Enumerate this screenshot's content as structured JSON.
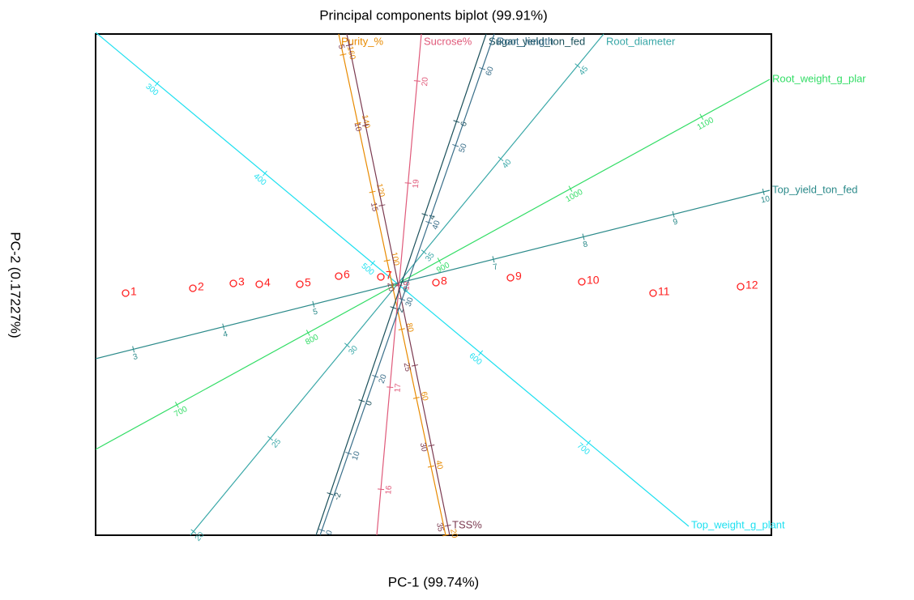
{
  "chart_data": {
    "type": "biplot",
    "title": "Principal components biplot (99.91%)",
    "xlabel": "PC-1  (99.74%)",
    "ylabel": "PC-2  (0.17227%)",
    "xlim": [
      -372,
      462
    ],
    "ylim": [
      -311,
      308
    ],
    "point_color": "#ff2020",
    "points": [
      {
        "label": "1",
        "x": -335,
        "y": -12
      },
      {
        "label": "2",
        "x": -252,
        "y": -6
      },
      {
        "label": "3",
        "x": -202,
        "y": 0
      },
      {
        "label": "4",
        "x": -170,
        "y": -1
      },
      {
        "label": "5",
        "x": -120,
        "y": -1
      },
      {
        "label": "6",
        "x": -72,
        "y": 9
      },
      {
        "label": "7",
        "x": -20,
        "y": 8
      },
      {
        "label": "8",
        "x": 48,
        "y": 1
      },
      {
        "label": "9",
        "x": 140,
        "y": 7
      },
      {
        "label": "10",
        "x": 228,
        "y": 2
      },
      {
        "label": "11",
        "x": 316,
        "y": -12
      },
      {
        "label": "12",
        "x": 424,
        "y": -4
      }
    ],
    "variables": [
      {
        "name": "Top_weight_g_plant",
        "color": "#1ee0f0",
        "start": [
          -372,
          310
        ],
        "end": [
          360,
          -300
        ],
        "lim": [
          243,
          793
        ],
        "ticks": [
          300,
          400,
          500,
          600,
          700
        ]
      },
      {
        "name": "Root_weight_g_plar",
        "color": "#33dd66",
        "start": [
          -372,
          -205
        ],
        "end": [
          460,
          252
        ],
        "lim": [
          638,
          1152
        ],
        "ticks": [
          700,
          800,
          900,
          1000,
          1100
        ]
      },
      {
        "name": "Top_yield_ton_fed",
        "color": "#2b8a8a",
        "start": [
          -372,
          -93
        ],
        "end": [
          460,
          115
        ],
        "lim": [
          2.58,
          10.07
        ],
        "ticks": [
          3,
          4,
          5,
          6,
          7,
          8,
          9,
          10
        ]
      },
      {
        "name": "Root_diameter",
        "color": "#3aa8a8",
        "start": [
          -255,
          -311
        ],
        "end": [
          255,
          308
        ],
        "lim": [
          19.8,
          46.7
        ],
        "ticks": [
          20,
          25,
          30,
          35,
          40,
          45
        ]
      },
      {
        "name": "Purity_%",
        "color": "#e88a00",
        "start": [
          60,
          -311
        ],
        "end": [
          -72,
          308
        ],
        "lim": [
          20,
          166
        ],
        "ticks": [
          20,
          40,
          60,
          80,
          100,
          120,
          140,
          160
        ]
      },
      {
        "name": "TSS%",
        "color": "#7b3a50",
        "start": [
          -62,
          308
        ],
        "end": [
          65,
          -311
        ],
        "lim": [
          4.3,
          35.6
        ],
        "ticks": [
          5,
          10,
          15,
          20,
          25,
          30,
          35
        ]
      },
      {
        "name": "Sucrose%",
        "color": "#e05a7a",
        "start": [
          -25,
          -311
        ],
        "end": [
          30,
          308
        ],
        "lim": [
          15.55,
          20.46
        ],
        "ticks": [
          16,
          17,
          18,
          19,
          20
        ]
      },
      {
        "name": "Sugar_yield_ton_fed",
        "color": "#1a4f5a",
        "start": [
          -100,
          -311
        ],
        "end": [
          110,
          308
        ],
        "lim": [
          -2.89,
          7.88
        ],
        "ticks": [
          -2,
          0,
          2,
          4,
          6
        ]
      },
      {
        "name": "Root_length",
        "color": "#3a6f8a",
        "start": [
          -95,
          -311
        ],
        "end": [
          120,
          308
        ],
        "lim": [
          -0.66,
          64.5
        ],
        "ticks": [
          0,
          10,
          20,
          30,
          40,
          50,
          60
        ]
      }
    ]
  }
}
